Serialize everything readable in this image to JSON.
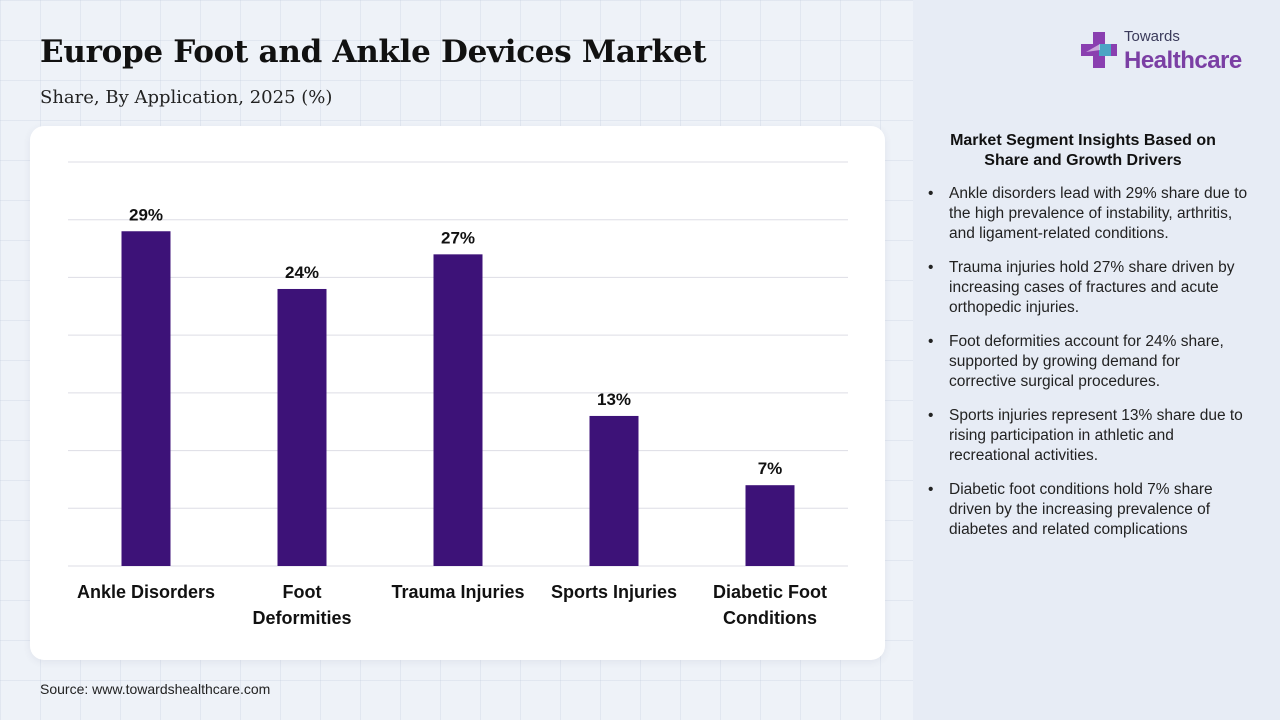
{
  "header": {
    "title": "Europe Foot and Ankle Devices Market",
    "subtitle": "Share, By Application, 2025 (%)"
  },
  "logo": {
    "top_text": "Towards",
    "main_text": "Healthcare",
    "icon": "cross-icon"
  },
  "colors": {
    "bar": "#3d1278",
    "logo_main": "#7b3fa4",
    "grid": "#dddde5"
  },
  "chart_data": {
    "type": "bar",
    "categories": [
      [
        "Ankle Disorders"
      ],
      [
        "Foot",
        "Deformities"
      ],
      [
        "Trauma Injuries"
      ],
      [
        "Sports Injuries"
      ],
      [
        "Diabetic Foot",
        "Conditions"
      ]
    ],
    "values": [
      29,
      24,
      27,
      13,
      7
    ],
    "value_labels": [
      "29%",
      "24%",
      "27%",
      "13%",
      "7%"
    ],
    "ylim": [
      0,
      35
    ],
    "grid": true,
    "xlabel": "",
    "ylabel": ""
  },
  "insights": {
    "title": "Market Segment Insights Based on Share and Growth Drivers",
    "items": [
      "Ankle disorders lead with 29% share due to the high prevalence of instability, arthritis, and ligament-related conditions.",
      "Trauma injuries hold 27% share driven by increasing cases of fractures and acute orthopedic injuries.",
      "Foot deformities account for 24% share, supported by growing demand for corrective surgical procedures.",
      "Sports injuries represent 13% share due to rising participation in athletic and recreational activities.",
      "Diabetic foot conditions hold 7% share driven by the increasing prevalence of diabetes and related complications"
    ]
  },
  "source": "Source: www.towardshealthcare.com"
}
